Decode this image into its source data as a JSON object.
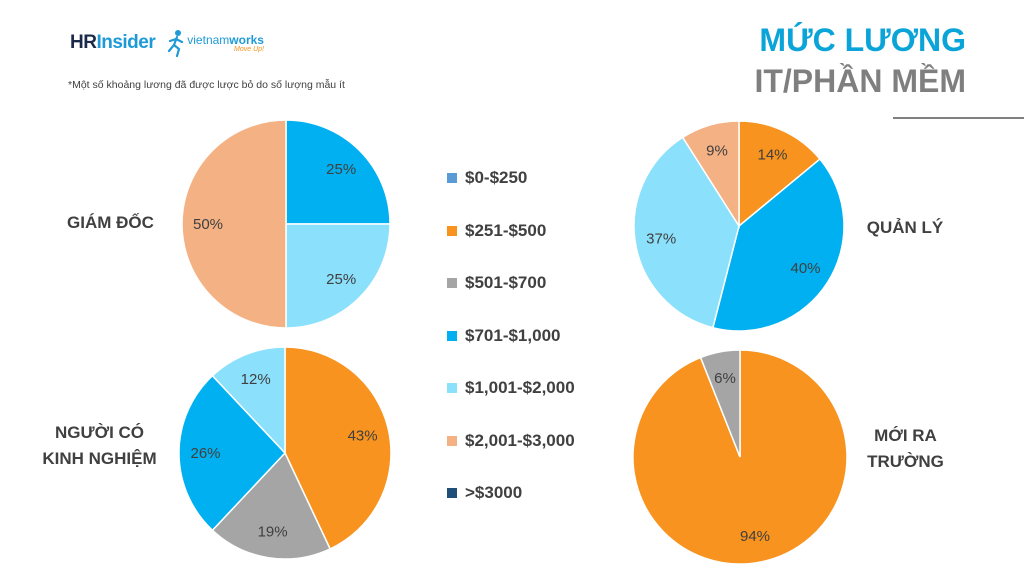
{
  "header": {
    "logo_hr": "HR",
    "logo_insider": "Insider",
    "logo_vnw_vietnam": "vietnam",
    "logo_vnw_works": "works",
    "logo_vnw_tag": "Move Up!",
    "note": "*Một số khoảng lương đã được lược bỏ do số lượng mẫu ít",
    "title_line1": "MỨC LƯƠNG",
    "title_line2": "IT/PHẦN MỀM"
  },
  "chart_data": [
    {
      "type": "pie",
      "label_lines": [
        "GIÁM ĐỐC"
      ],
      "slices": [
        {
          "category": "$701-$1,000",
          "value": 25,
          "label": "25%"
        },
        {
          "category": "$1,001-$2,000",
          "value": 25,
          "label": "25%"
        },
        {
          "category": "$2,001-$3,000",
          "value": 50,
          "label": "50%"
        }
      ]
    },
    {
      "type": "pie",
      "label_lines": [
        "QUẢN LÝ"
      ],
      "slices": [
        {
          "category": "$251-$500",
          "value": 14,
          "label": "14%"
        },
        {
          "category": "$701-$1,000",
          "value": 40,
          "label": "40%"
        },
        {
          "category": "$1,001-$2,000",
          "value": 37,
          "label": "37%"
        },
        {
          "category": "$2,001-$3,000",
          "value": 9,
          "label": "9%"
        }
      ]
    },
    {
      "type": "pie",
      "label_lines": [
        "NGƯỜI CÓ",
        "KINH NGHIỆM"
      ],
      "slices": [
        {
          "category": "$251-$500",
          "value": 43,
          "label": "43%"
        },
        {
          "category": "$501-$700",
          "value": 19,
          "label": "19%"
        },
        {
          "category": "$701-$1,000",
          "value": 26,
          "label": "26%"
        },
        {
          "category": "$1,001-$2,000",
          "value": 12,
          "label": "12%"
        }
      ]
    },
    {
      "type": "pie",
      "label_lines": [
        "MỚI RA",
        "TRƯỜNG"
      ],
      "slices": [
        {
          "category": "$251-$500",
          "value": 94,
          "label": "94%"
        },
        {
          "category": "$501-$700",
          "value": 6,
          "label": "6%"
        }
      ]
    }
  ],
  "legend": [
    {
      "label": "$0-$250",
      "color": "#5b9bd5"
    },
    {
      "label": "$251-$500",
      "color": "#f7931e"
    },
    {
      "label": "$501-$700",
      "color": "#a5a5a5"
    },
    {
      "label": "$701-$1,000",
      "color": "#00b0f0"
    },
    {
      "label": "$1,001-$2,000",
      "color": "#8be0fb"
    },
    {
      "label": "$2,001-$3,000",
      "color": "#f4b183"
    },
    {
      "label": ">$3000",
      "color": "#1f4e79"
    }
  ]
}
